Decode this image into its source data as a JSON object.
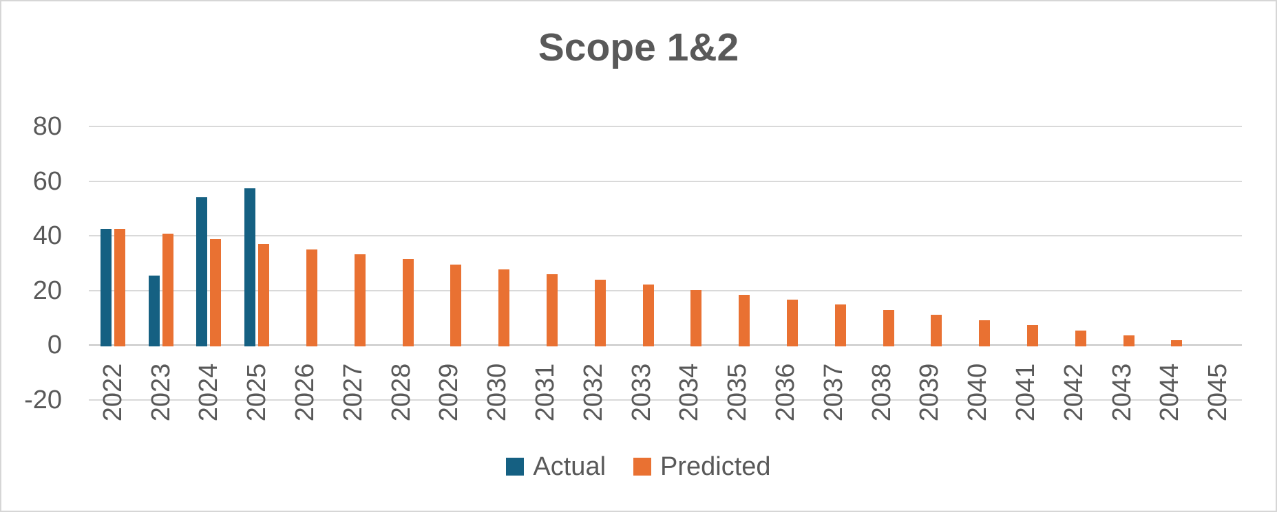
{
  "window": {
    "background_color": "#FFFFFF",
    "border_color": "#D6D6D6"
  },
  "chart_data": {
    "type": "bar",
    "title": "Scope 1&2",
    "categories": [
      "2022",
      "2023",
      "2024",
      "2025",
      "2026",
      "2027",
      "2028",
      "2029",
      "2030",
      "2031",
      "2032",
      "2033",
      "2034",
      "2035",
      "2036",
      "2037",
      "2038",
      "2039",
      "2040",
      "2041",
      "2042",
      "2043",
      "2044",
      "2045"
    ],
    "series": [
      {
        "name": "Actual",
        "color": "#156082",
        "values": [
          42.5,
          25.5,
          54,
          57.5,
          null,
          null,
          null,
          null,
          null,
          null,
          null,
          null,
          null,
          null,
          null,
          null,
          null,
          null,
          null,
          null,
          null,
          null,
          null,
          null
        ]
      },
      {
        "name": "Predicted",
        "color": "#E97132",
        "values": [
          42.5,
          40.7,
          38.8,
          37.0,
          35.1,
          33.3,
          31.4,
          29.6,
          27.7,
          25.9,
          24.0,
          22.2,
          20.3,
          18.5,
          16.6,
          14.8,
          12.9,
          11.1,
          9.2,
          7.4,
          5.5,
          3.7,
          1.8,
          0
        ]
      }
    ],
    "xlabel": "",
    "ylabel": "",
    "y_axis": {
      "min": -20,
      "max": 80,
      "step": 20,
      "ticks": [
        80,
        60,
        40,
        20,
        0,
        -20
      ]
    },
    "x_labels_rotation_degrees": -90,
    "grid": true,
    "legend_position": "bottom",
    "styles": {
      "text_color": "#595959",
      "gridline_color": "#D9D9D9",
      "zero_axis_color": "#C6C6C6"
    }
  }
}
